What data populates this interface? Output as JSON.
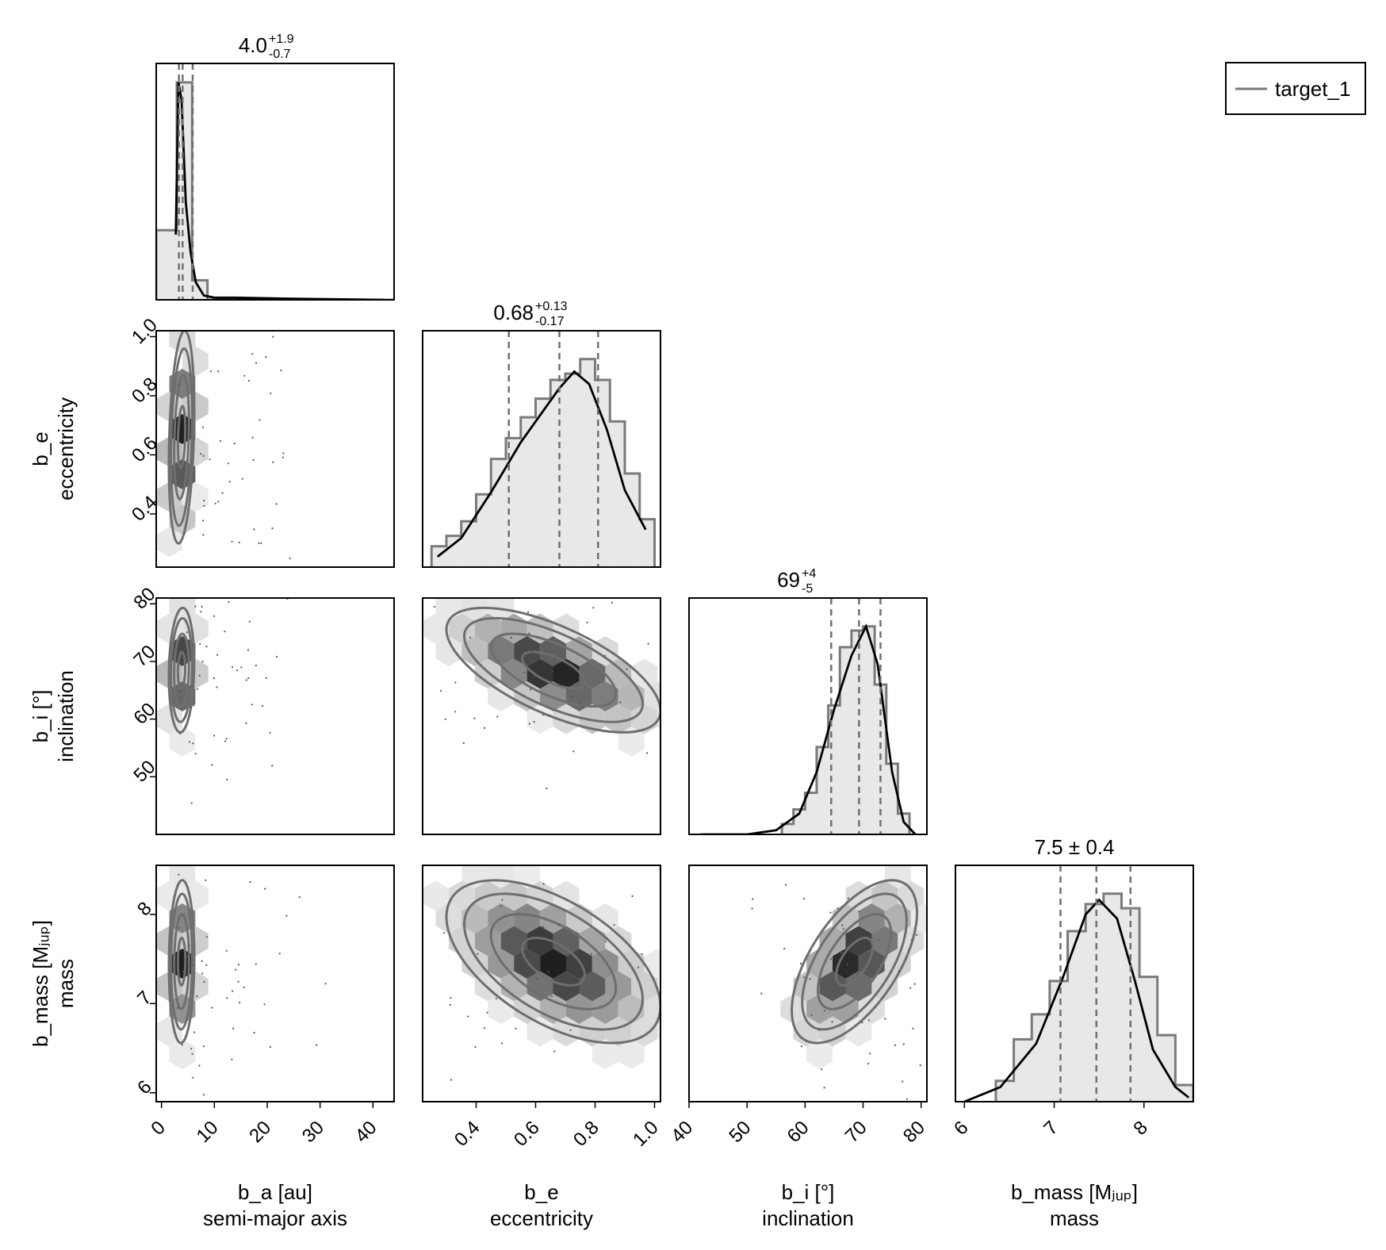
{
  "chart_data": {
    "type": "corner",
    "legend": {
      "label": "target_1",
      "position": "top-right"
    },
    "parameters": [
      {
        "key": "a",
        "label": "b_a [au]",
        "sublabel": "semi-major axis",
        "range": [
          -1,
          44
        ],
        "ticks": [
          0,
          10,
          20,
          30,
          40
        ],
        "tick_labels": [
          "0",
          "10",
          "20",
          "30",
          "40"
        ],
        "summary": {
          "median": "4.0",
          "plus": "+1.9",
          "minus": "-0.7"
        },
        "quantiles": [
          3.3,
          4.0,
          5.9
        ]
      },
      {
        "key": "e",
        "label": "b_e",
        "sublabel": "eccentricity",
        "range": [
          0.22,
          1.02
        ],
        "ticks": [
          0.4,
          0.6,
          0.8,
          1.0
        ],
        "tick_labels": [
          "0.4",
          "0.6",
          "0.8",
          "1.0"
        ],
        "summary": {
          "median": "0.68",
          "plus": "+0.13",
          "minus": "-0.17"
        },
        "quantiles": [
          0.51,
          0.68,
          0.81
        ]
      },
      {
        "key": "i",
        "label": "b_i [°]",
        "sublabel": "inclination",
        "range": [
          40,
          81
        ],
        "ticks": [
          40,
          50,
          60,
          70,
          80
        ],
        "tick_labels": [
          "40",
          "50",
          "60",
          "70",
          "80"
        ],
        "y_ticks": [
          50,
          60,
          70,
          80
        ],
        "y_tick_labels": [
          "50",
          "60",
          "70",
          "80"
        ],
        "summary": {
          "median": "69",
          "plus": "+4",
          "minus": "-5"
        },
        "quantiles": [
          64.5,
          69.3,
          73.0
        ]
      },
      {
        "key": "mass",
        "label": "b_mass [Mⱼᵤₚ]",
        "sublabel": "mass",
        "range": [
          5.9,
          8.55
        ],
        "ticks": [
          6,
          7,
          8
        ],
        "tick_labels": [
          "6",
          "7",
          "8"
        ],
        "summary": {
          "text": "7.5 ± 0.4"
        },
        "quantiles": [
          7.07,
          7.47,
          7.85
        ]
      }
    ],
    "histograms": {
      "a": {
        "edges": [
          -1,
          2.9,
          5.8,
          8.7,
          44
        ],
        "counts": [
          0.32,
          1.0,
          0.09,
          0.0
        ]
      },
      "e": {
        "edges": [
          0.25,
          0.3,
          0.35,
          0.4,
          0.45,
          0.5,
          0.55,
          0.6,
          0.65,
          0.7,
          0.75,
          0.8,
          0.85,
          0.9,
          0.95,
          1.0
        ],
        "counts": [
          0.1,
          0.15,
          0.22,
          0.35,
          0.52,
          0.62,
          0.72,
          0.81,
          0.9,
          0.93,
          1.0,
          0.9,
          0.7,
          0.45,
          0.23
        ]
      },
      "i": {
        "edges": [
          56,
          58,
          60,
          62,
          64,
          66,
          68,
          70,
          72,
          74,
          76,
          78
        ],
        "counts": [
          0.05,
          0.12,
          0.2,
          0.42,
          0.62,
          0.9,
          0.98,
          1.0,
          0.72,
          0.34,
          0.1
        ]
      },
      "mass": {
        "edges": [
          6.35,
          6.55,
          6.75,
          6.95,
          7.15,
          7.35,
          7.55,
          7.75,
          7.95,
          8.15,
          8.35,
          8.55
        ],
        "counts": [
          0.1,
          0.3,
          0.42,
          0.58,
          0.82,
          0.95,
          1.0,
          0.93,
          0.6,
          0.32,
          0.08
        ]
      }
    },
    "kde": {
      "a": [
        [
          2.7,
          0.3
        ],
        [
          3.2,
          1.0
        ],
        [
          3.8,
          0.92
        ],
        [
          4.6,
          0.45
        ],
        [
          5.5,
          0.22
        ],
        [
          6.5,
          0.08
        ],
        [
          8,
          0.02
        ],
        [
          10,
          0.01
        ],
        [
          14,
          0.01
        ],
        [
          25,
          0.005
        ],
        [
          42,
          0.0
        ]
      ],
      "e": [
        [
          0.27,
          0.05
        ],
        [
          0.35,
          0.14
        ],
        [
          0.45,
          0.36
        ],
        [
          0.55,
          0.6
        ],
        [
          0.62,
          0.74
        ],
        [
          0.68,
          0.86
        ],
        [
          0.73,
          0.94
        ],
        [
          0.78,
          0.88
        ],
        [
          0.84,
          0.66
        ],
        [
          0.9,
          0.37
        ],
        [
          0.97,
          0.18
        ]
      ],
      "i": [
        [
          42,
          0.0
        ],
        [
          50,
          0.0
        ],
        [
          55,
          0.02
        ],
        [
          59,
          0.1
        ],
        [
          62,
          0.3
        ],
        [
          65,
          0.6
        ],
        [
          68,
          0.86
        ],
        [
          70.5,
          1.0
        ],
        [
          72.5,
          0.82
        ],
        [
          75,
          0.3
        ],
        [
          77,
          0.06
        ],
        [
          79,
          0.0
        ]
      ],
      "mass": [
        [
          6.0,
          0.0
        ],
        [
          6.4,
          0.07
        ],
        [
          6.8,
          0.28
        ],
        [
          7.1,
          0.6
        ],
        [
          7.35,
          0.9
        ],
        [
          7.5,
          0.97
        ],
        [
          7.7,
          0.88
        ],
        [
          7.9,
          0.58
        ],
        [
          8.1,
          0.25
        ],
        [
          8.35,
          0.07
        ],
        [
          8.5,
          0.02
        ]
      ]
    }
  }
}
